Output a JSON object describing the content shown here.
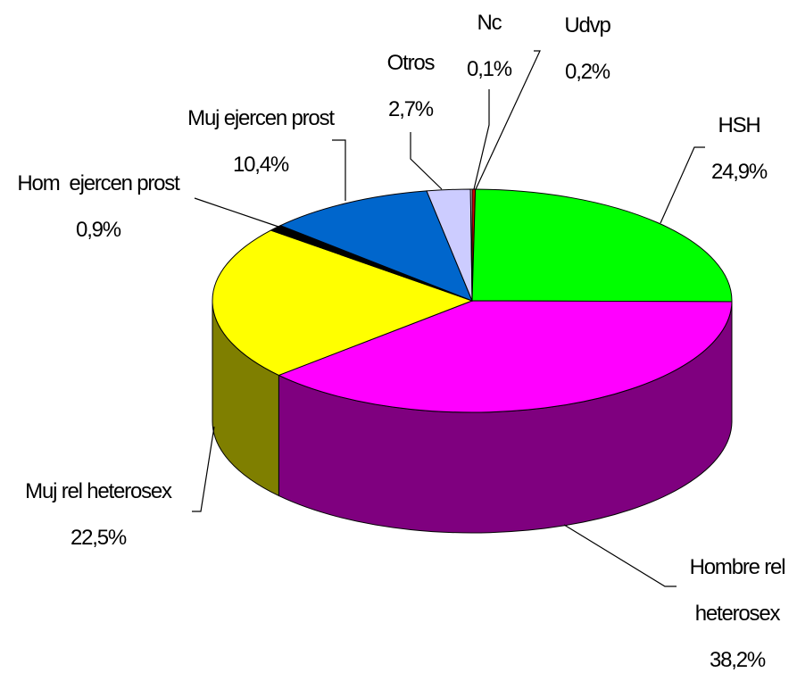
{
  "chart_data": {
    "type": "pie3d",
    "categories": [
      "Udvp",
      "HSH",
      "Hombre rel heterosex",
      "Muj rel heterosex",
      "Hom  ejercen prost",
      "Muj ejercen prost",
      "Otros",
      "Nc"
    ],
    "values": [
      0.2,
      24.9,
      38.2,
      22.5,
      0.9,
      10.4,
      2.7,
      0.1
    ],
    "value_labels": [
      "0,2%",
      "24,9%",
      "38,2%",
      "22,5%",
      "0,9%",
      "10,4%",
      "2,7%",
      "0,1%"
    ],
    "colors": [
      "#cc0000",
      "#00ff00",
      "#ff00ff",
      "#ffff00",
      "#000000",
      "#0066cc",
      "#ccccff",
      "#ffffff"
    ]
  }
}
